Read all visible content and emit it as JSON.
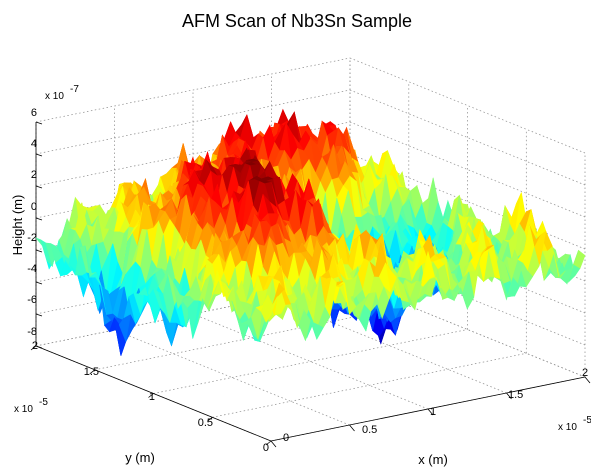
{
  "chart_data": {
    "type": "surface",
    "title": "AFM Scan of Nb3Sn Sample",
    "xlabel": "x (m)",
    "ylabel": "y (m)",
    "zlabel": "Height (m)",
    "x_exponent": "x 10",
    "x_exponent_power": "-5",
    "y_exponent": "x 10",
    "y_exponent_power": "-5",
    "z_exponent": "x 10",
    "z_exponent_power": "-7",
    "xlim": [
      0,
      2
    ],
    "ylim": [
      0,
      2
    ],
    "zlim": [
      -8,
      6
    ],
    "x_ticks": [
      "0",
      "0.5",
      "1",
      "1.5",
      "2"
    ],
    "y_ticks": [
      "0",
      "0.5",
      "1",
      "1.5",
      "2"
    ],
    "z_ticks": [
      "6",
      "4",
      "2",
      "0",
      "-2",
      "-4",
      "-6",
      "-8"
    ],
    "colormap": "jet",
    "grid": true,
    "height_range_approx": [
      -7.6,
      5.2
    ],
    "features": [
      {
        "x": 0.6,
        "y": 1.0,
        "z": 5.0
      },
      {
        "x": 1.2,
        "y": 1.7,
        "z": 4.3
      },
      {
        "x": 0.1,
        "y": 1.3,
        "z": -7.0
      },
      {
        "x": 0.4,
        "y": 1.5,
        "z": 3.5
      },
      {
        "x": 1.3,
        "y": 1.0,
        "z": -6.0
      },
      {
        "x": 0.6,
        "y": 0.7,
        "z": 0.5
      },
      {
        "x": 1.7,
        "y": 1.2,
        "z": -2.0
      },
      {
        "x": 1.5,
        "y": 1.5,
        "z": 3.0
      }
    ]
  }
}
